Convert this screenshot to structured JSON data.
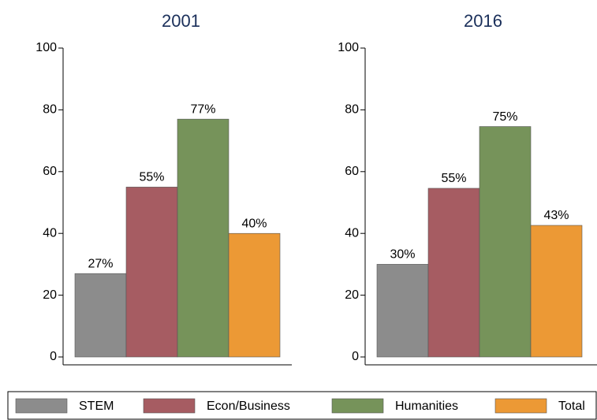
{
  "chart_data": [
    {
      "type": "bar",
      "title": "2001",
      "categories": [
        "STEM",
        "Econ/Business",
        "Humanities",
        "Total"
      ],
      "values": [
        27,
        55,
        77,
        40
      ],
      "value_labels": [
        "27%",
        "55%",
        "77%",
        "40%"
      ],
      "colors": [
        "#8c8c8c",
        "#a65c62",
        "#76935a",
        "#ec9935"
      ],
      "ylim": [
        0,
        100
      ],
      "yticks": [
        0,
        20,
        40,
        60,
        80,
        100
      ]
    },
    {
      "type": "bar",
      "title": "2016",
      "categories": [
        "STEM",
        "Econ/Business",
        "Humanities",
        "Total"
      ],
      "values": [
        30,
        54.6,
        74.6,
        42.6
      ],
      "value_labels": [
        "30%",
        "55%",
        "75%",
        "43%"
      ],
      "colors": [
        "#8c8c8c",
        "#a65c62",
        "#76935a",
        "#ec9935"
      ],
      "ylim": [
        0,
        100
      ],
      "yticks": [
        0,
        20,
        40,
        60,
        80,
        100
      ]
    }
  ]
}
